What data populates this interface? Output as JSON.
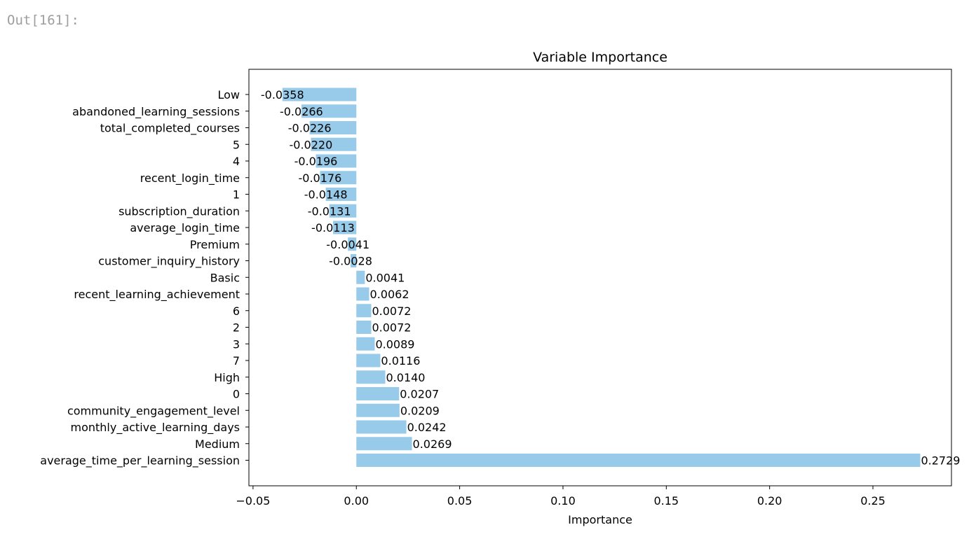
{
  "cell": {
    "out_prompt": "Out[161]:"
  },
  "chart_data": {
    "type": "bar",
    "orientation": "horizontal",
    "title": "Variable Importance",
    "xlabel": "Importance",
    "ylabel": "",
    "xlim": [
      -0.052,
      0.288
    ],
    "xticks": [
      -0.05,
      0.0,
      0.05,
      0.1,
      0.15,
      0.2,
      0.25
    ],
    "xtick_labels": [
      "−0.05",
      "0.00",
      "0.05",
      "0.10",
      "0.15",
      "0.20",
      "0.25"
    ],
    "grid": false,
    "bar_color": "#97cbe9",
    "categories": [
      "Low",
      "abandoned_learning_sessions",
      "total_completed_courses",
      "5",
      "4",
      "recent_login_time",
      "1",
      "subscription_duration",
      "average_login_time",
      "Premium",
      "customer_inquiry_history",
      "Basic",
      "recent_learning_achievement",
      "6",
      "2",
      "3",
      "7",
      "High",
      "0",
      "community_engagement_level",
      "monthly_active_learning_days",
      "Medium",
      "average_time_per_learning_session"
    ],
    "values": [
      -0.0358,
      -0.0266,
      -0.0226,
      -0.022,
      -0.0196,
      -0.0176,
      -0.0148,
      -0.0131,
      -0.0113,
      -0.0041,
      -0.0028,
      0.0041,
      0.0062,
      0.0072,
      0.0072,
      0.0089,
      0.0116,
      0.014,
      0.0207,
      0.0209,
      0.0242,
      0.0269,
      0.2729
    ],
    "value_labels": [
      "-0.0358",
      "-0.0266",
      "-0.0226",
      "-0.0220",
      "-0.0196",
      "-0.0176",
      "-0.0148",
      "-0.0131",
      "-0.0113",
      "-0.0041",
      "-0.0028",
      "0.0041",
      "0.0062",
      "0.0072",
      "0.0072",
      "0.0089",
      "0.0116",
      "0.0140",
      "0.0207",
      "0.0209",
      "0.0242",
      "0.0269",
      "0.2729"
    ]
  }
}
